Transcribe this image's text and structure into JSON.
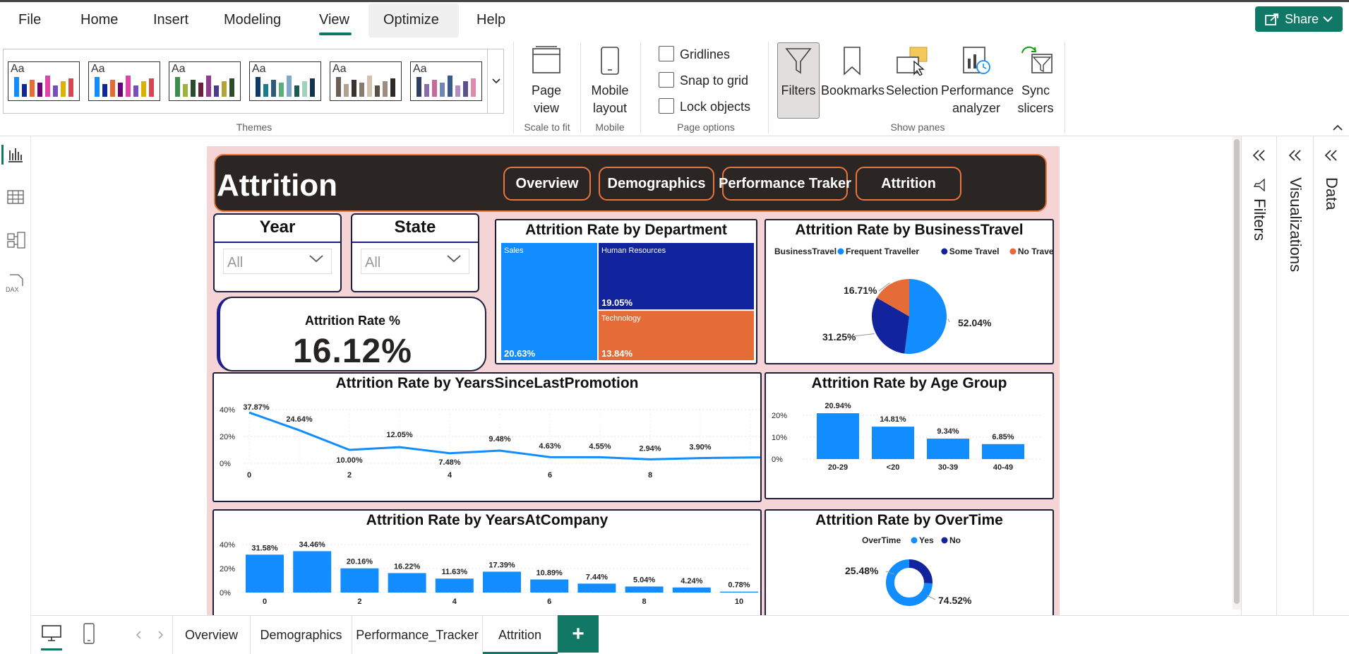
{
  "menu": {
    "file": "File",
    "home": "Home",
    "insert": "Insert",
    "modeling": "Modeling",
    "view": "View",
    "optimize": "Optimize",
    "help": "Help"
  },
  "share": "Share",
  "ribbon": {
    "themes_label": "Themes",
    "theme_aa": "Aa",
    "page_view": "Page view",
    "scale_to_fit": "Scale to fit",
    "mobile_layout": "Mobile layout",
    "mobile": "Mobile",
    "gridlines": "Gridlines",
    "snap_to_grid": "Snap to grid",
    "lock_objects": "Lock objects",
    "page_options": "Page options",
    "filters": "Filters",
    "bookmarks": "Bookmarks",
    "selection": "Selection",
    "performance_analyzer": "Performance analyzer",
    "sync_slicers": "Sync slicers",
    "show_panes": "Show panes"
  },
  "panes": {
    "filters": "Filters",
    "visualizations": "Visualizations",
    "data": "Data"
  },
  "report": {
    "title": "Attrition",
    "nav": [
      "Overview",
      "Demographics",
      "Performance Traker",
      "Attrition"
    ],
    "slicers": {
      "year_title": "Year",
      "year_value": "All",
      "state_title": "State",
      "state_value": "All"
    },
    "kpi": {
      "label": "Attrition Rate %",
      "value": "16.12%"
    }
  },
  "colors": {
    "primary": "#118dff",
    "dark_blue": "#12239e",
    "orange": "#e66c37",
    "header_bg": "#2b2524",
    "accent": "#117865"
  },
  "chart_data": [
    {
      "type": "treemap",
      "title": "Attrition Rate by Department",
      "categories": [
        "Sales",
        "Human Resources",
        "Technology"
      ],
      "labels": [
        "20.63%",
        "19.05%",
        "13.84%"
      ],
      "values": [
        20.63,
        19.05,
        13.84
      ]
    },
    {
      "type": "pie",
      "title": "Attrition Rate by BusinessTravel",
      "legend_title": "BusinessTravel",
      "categories": [
        "Frequent Traveller",
        "Some Travel",
        "No Travel"
      ],
      "labels": [
        "52.04%",
        "31.25%",
        "16.71%"
      ],
      "values": [
        52.04,
        31.25,
        16.71
      ]
    },
    {
      "type": "line",
      "title": "Attrition Rate by YearsSinceLastPromotion",
      "x": [
        0,
        1,
        2,
        3,
        4,
        5,
        6,
        7,
        8,
        9,
        10
      ],
      "y": [
        37.87,
        24.64,
        10.0,
        12.05,
        7.48,
        9.48,
        4.63,
        4.55,
        2.94,
        3.9,
        null
      ],
      "point_labels": [
        "37.87%",
        "24.64%",
        "10.00%",
        "12.05%",
        "7.48%",
        "9.48%",
        "4.63%",
        "4.55%",
        "2.94%",
        "3.90%",
        ""
      ],
      "x_ticks": [
        "0",
        "2",
        "4",
        "6",
        "8"
      ],
      "y_ticks": [
        "40%",
        "20%",
        "0%"
      ],
      "ylim": [
        0,
        40
      ]
    },
    {
      "type": "bar",
      "title": "Attrition Rate by Age Group",
      "categories": [
        "20-29",
        "<20",
        "30-39",
        "40-49"
      ],
      "values": [
        20.94,
        14.81,
        9.34,
        6.85
      ],
      "labels": [
        "20.94%",
        "14.81%",
        "9.34%",
        "6.85%"
      ],
      "y_ticks": [
        "20%",
        "10%",
        "0%"
      ],
      "ylim": [
        0,
        20
      ]
    },
    {
      "type": "bar",
      "title": "Attrition Rate by YearsAtCompany",
      "x": [
        0,
        1,
        2,
        3,
        4,
        5,
        6,
        7,
        8,
        9,
        10
      ],
      "values": [
        31.58,
        34.46,
        20.16,
        16.22,
        11.63,
        17.39,
        10.89,
        7.44,
        5.04,
        4.24,
        0.78
      ],
      "labels": [
        "31.58%",
        "34.46%",
        "20.16%",
        "16.22%",
        "11.63%",
        "17.39%",
        "10.89%",
        "7.44%",
        "5.04%",
        "4.24%",
        "0.78%"
      ],
      "x_ticks": [
        "0",
        "2",
        "4",
        "6",
        "8",
        "10"
      ],
      "y_ticks": [
        "40%",
        "20%",
        "0%"
      ],
      "ylim": [
        0,
        40
      ]
    },
    {
      "type": "donut",
      "title": "Attrition Rate by OverTime",
      "legend_title": "OverTime",
      "categories": [
        "Yes",
        "No"
      ],
      "values": [
        25.48,
        74.52
      ],
      "labels": [
        "25.48%",
        "74.52%"
      ]
    }
  ],
  "tabs": [
    "Overview",
    "Demographics",
    "Performance_Tracker",
    "Attrition"
  ],
  "add_tab": "+"
}
